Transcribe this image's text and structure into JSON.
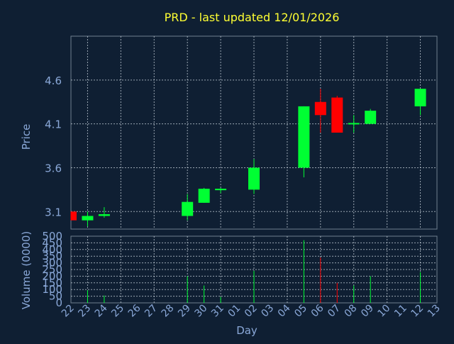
{
  "chart_data": {
    "type": "candlestick",
    "title": "PRD - last updated 12/01/2026",
    "colors": {
      "background": "#0f1f33",
      "title": "#ffff33",
      "up": "#00ff33",
      "down": "#ff0000",
      "axis_label": "#8aa8d8",
      "grid": "#c8d2dc"
    },
    "grid": true,
    "x_axis": {
      "label": "Day",
      "tick_labels": [
        "22",
        "23",
        "24",
        "25",
        "26",
        "27",
        "28",
        "29",
        "30",
        "31",
        "01",
        "02",
        "03",
        "04",
        "05",
        "06",
        "07",
        "08",
        "09",
        "10",
        "11",
        "12",
        "13"
      ]
    },
    "price_panel": {
      "ylabel": "Price",
      "ylim": [
        2.9,
        5.1
      ],
      "yticks": [
        3.1,
        3.6,
        4.1,
        4.6
      ],
      "ytick_labels": [
        "3.1",
        "3.6",
        "4.1",
        "4.6"
      ]
    },
    "volume_panel": {
      "ylabel": "Volume (0000)",
      "ylim": [
        0,
        500
      ],
      "yticks": [
        0,
        50,
        100,
        150,
        200,
        250,
        300,
        350,
        400,
        450,
        500
      ],
      "ytick_labels": [
        "0",
        "50",
        "100",
        "150",
        "200",
        "250",
        "300",
        "350",
        "400",
        "450",
        "500"
      ]
    },
    "candles": [
      {
        "day": "22",
        "open": 3.1,
        "high": 3.1,
        "low": 3.0,
        "close": 3.0,
        "volume": 0
      },
      {
        "day": "23",
        "open": 3.0,
        "high": 3.1,
        "low": 2.93,
        "close": 3.05,
        "volume": 95
      },
      {
        "day": "24",
        "open": 3.05,
        "high": 3.15,
        "low": 3.03,
        "close": 3.07,
        "volume": 55
      },
      {
        "day": "29",
        "open": 3.05,
        "high": 3.3,
        "low": 3.0,
        "close": 3.21,
        "volume": 200
      },
      {
        "day": "30",
        "open": 3.2,
        "high": 3.37,
        "low": 3.2,
        "close": 3.36,
        "volume": 130
      },
      {
        "day": "31",
        "open": 3.35,
        "high": 3.37,
        "low": 3.31,
        "close": 3.36,
        "volume": 45
      },
      {
        "day": "02",
        "open": 3.35,
        "high": 3.7,
        "low": 3.3,
        "close": 3.6,
        "volume": 240
      },
      {
        "day": "05",
        "open": 3.6,
        "high": 4.3,
        "low": 3.49,
        "close": 4.3,
        "volume": 470
      },
      {
        "day": "06",
        "open": 4.35,
        "high": 4.5,
        "low": 4.0,
        "close": 4.2,
        "volume": 340
      },
      {
        "day": "07",
        "open": 4.4,
        "high": 4.42,
        "low": 4.0,
        "close": 4.0,
        "volume": 150
      },
      {
        "day": "08",
        "open": 4.1,
        "high": 4.2,
        "low": 4.0,
        "close": 4.11,
        "volume": 130
      },
      {
        "day": "09",
        "open": 4.1,
        "high": 4.27,
        "low": 4.1,
        "close": 4.25,
        "volume": 200
      },
      {
        "day": "12",
        "open": 4.3,
        "high": 4.5,
        "low": 4.2,
        "close": 4.5,
        "volume": 230
      }
    ]
  }
}
